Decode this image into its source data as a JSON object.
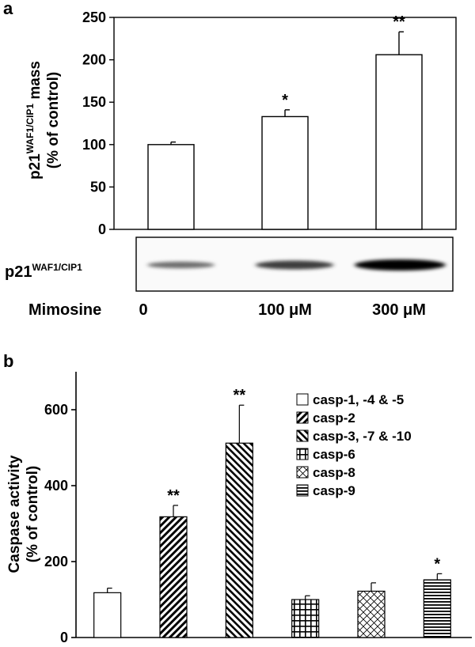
{
  "panel_a": {
    "letter": "a",
    "ylabel_line1_main": "p21",
    "ylabel_line1_sup": "WAF1/CIP1",
    "ylabel_line1_tail": " mass",
    "ylabel_line2": "(% of control)",
    "blot_label_main": "p21",
    "blot_label_sup": "WAF1/CIP1",
    "treatment_label": "Mimosine"
  },
  "panel_b": {
    "letter": "b",
    "ylabel_line1": "Caspase activity",
    "ylabel_line2": "(% of control)"
  },
  "chart_data": [
    {
      "type": "bar",
      "panel": "a",
      "categories": [
        "0",
        "100 μM",
        "300 μM"
      ],
      "values": [
        100,
        133,
        206
      ],
      "errors": [
        3,
        8,
        27
      ],
      "significance": [
        "",
        "*",
        "**"
      ],
      "ylim": [
        0,
        250
      ],
      "yticks": [
        0,
        50,
        100,
        150,
        200,
        250
      ],
      "ylabel": "p21WAF1/CIP1 mass (% of control)",
      "xlabel": "Mimosine",
      "bar_fill": "#ffffff",
      "blot_band_intensity": [
        0.45,
        0.7,
        1.0
      ]
    },
    {
      "type": "bar",
      "panel": "b",
      "categories": [
        "casp-1, -4 & -5",
        "casp-2",
        "casp-3, -7 & -10",
        "casp-6",
        "casp-8",
        "casp-9"
      ],
      "values": [
        118,
        318,
        512,
        100,
        122,
        152
      ],
      "errors": [
        12,
        30,
        100,
        10,
        22,
        16
      ],
      "significance": [
        "",
        "**",
        "**",
        "",
        "",
        "*"
      ],
      "patterns": [
        "none",
        "diag-left",
        "diag-right",
        "grid",
        "crosshatch",
        "horizontal"
      ],
      "ylim": [
        0,
        700
      ],
      "yticks": [
        0,
        200,
        400,
        600
      ],
      "ylabel": "Caspase activity (% of control)",
      "legend_position": "top-right"
    }
  ]
}
